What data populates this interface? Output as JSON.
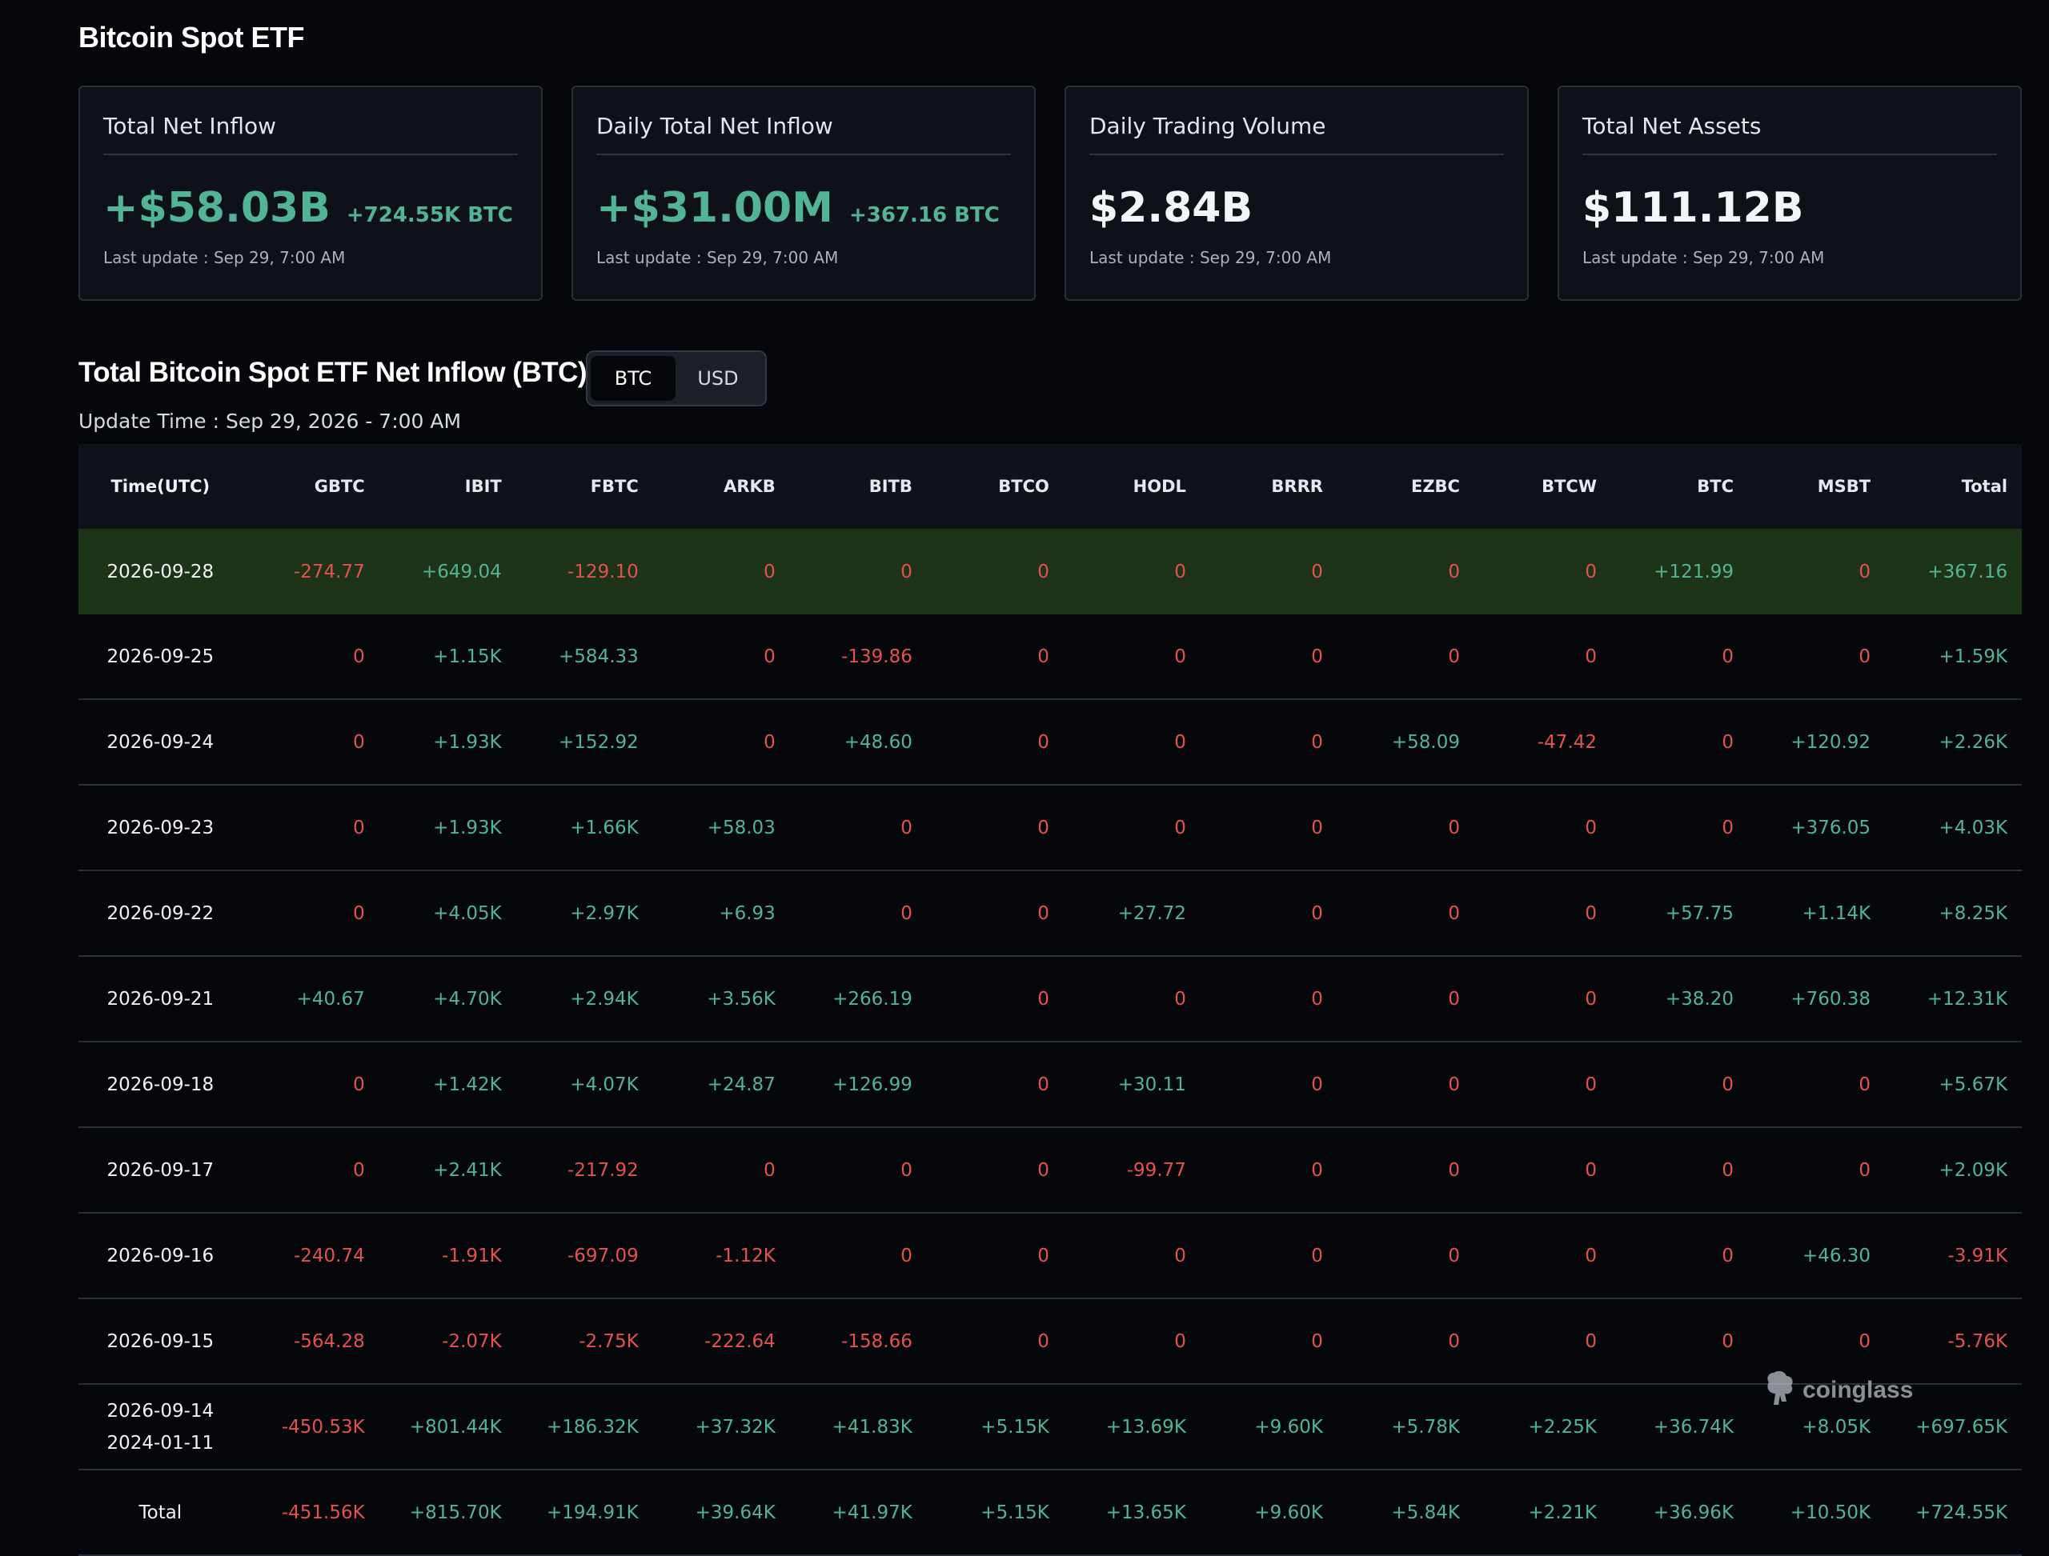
{
  "page": {
    "title": "Bitcoin Spot ETF"
  },
  "cards": [
    {
      "label": "Total Net Inflow",
      "value": "+$58.03B",
      "sub": "+724.55K BTC",
      "update": "Last update : Sep 29, 7:00 AM",
      "tone": "pos"
    },
    {
      "label": "Daily Total Net Inflow",
      "value": "+$31.00M",
      "sub": "+367.16 BTC",
      "update": "Last update : Sep 29, 7:00 AM",
      "tone": "pos"
    },
    {
      "label": "Daily Trading Volume",
      "value": "$2.84B",
      "sub": "",
      "update": "Last update : Sep 29, 7:00 AM",
      "tone": "neu"
    },
    {
      "label": "Total Net Assets",
      "value": "$111.12B",
      "sub": "",
      "update": "Last update : Sep 29, 7:00 AM",
      "tone": "neu"
    }
  ],
  "section": {
    "title": "Total Bitcoin Spot ETF Net Inflow (BTC)",
    "update_time": "Update Time : Sep 29, 2026 - 7:00 AM",
    "toggle": {
      "options": [
        "BTC",
        "USD"
      ],
      "selected": "BTC"
    }
  },
  "table": {
    "columns": [
      "Time(UTC)",
      "GBTC",
      "IBIT",
      "FBTC",
      "ARKB",
      "BITB",
      "BTCO",
      "HODL",
      "BRRR",
      "EZBC",
      "BTCW",
      "BTC",
      "MSBT",
      "Total"
    ],
    "rows": [
      {
        "time": [
          "2026-09-28"
        ],
        "highlight": true,
        "values": [
          "-274.77",
          "+649.04",
          "-129.10",
          "0",
          "0",
          "0",
          "0",
          "0",
          "0",
          "0",
          "+121.99",
          "0",
          "+367.16"
        ]
      },
      {
        "time": [
          "2026-09-25"
        ],
        "values": [
          "0",
          "+1.15K",
          "+584.33",
          "0",
          "-139.86",
          "0",
          "0",
          "0",
          "0",
          "0",
          "0",
          "0",
          "+1.59K"
        ]
      },
      {
        "time": [
          "2026-09-24"
        ],
        "values": [
          "0",
          "+1.93K",
          "+152.92",
          "0",
          "+48.60",
          "0",
          "0",
          "0",
          "+58.09",
          "-47.42",
          "0",
          "+120.92",
          "+2.26K"
        ]
      },
      {
        "time": [
          "2026-09-23"
        ],
        "values": [
          "0",
          "+1.93K",
          "+1.66K",
          "+58.03",
          "0",
          "0",
          "0",
          "0",
          "0",
          "0",
          "0",
          "+376.05",
          "+4.03K"
        ]
      },
      {
        "time": [
          "2026-09-22"
        ],
        "values": [
          "0",
          "+4.05K",
          "+2.97K",
          "+6.93",
          "0",
          "0",
          "+27.72",
          "0",
          "0",
          "0",
          "+57.75",
          "+1.14K",
          "+8.25K"
        ]
      },
      {
        "time": [
          "2026-09-21"
        ],
        "values": [
          "+40.67",
          "+4.70K",
          "+2.94K",
          "+3.56K",
          "+266.19",
          "0",
          "0",
          "0",
          "0",
          "0",
          "+38.20",
          "+760.38",
          "+12.31K"
        ]
      },
      {
        "time": [
          "2026-09-18"
        ],
        "values": [
          "0",
          "+1.42K",
          "+4.07K",
          "+24.87",
          "+126.99",
          "0",
          "+30.11",
          "0",
          "0",
          "0",
          "0",
          "0",
          "+5.67K"
        ]
      },
      {
        "time": [
          "2026-09-17"
        ],
        "values": [
          "0",
          "+2.41K",
          "-217.92",
          "0",
          "0",
          "0",
          "-99.77",
          "0",
          "0",
          "0",
          "0",
          "0",
          "+2.09K"
        ]
      },
      {
        "time": [
          "2026-09-16"
        ],
        "values": [
          "-240.74",
          "-1.91K",
          "-697.09",
          "-1.12K",
          "0",
          "0",
          "0",
          "0",
          "0",
          "0",
          "0",
          "+46.30",
          "-3.91K"
        ]
      },
      {
        "time": [
          "2026-09-15"
        ],
        "values": [
          "-564.28",
          "-2.07K",
          "-2.75K",
          "-222.64",
          "-158.66",
          "0",
          "0",
          "0",
          "0",
          "0",
          "0",
          "0",
          "-5.76K"
        ]
      },
      {
        "time": [
          "2026-09-14",
          "2024-01-11"
        ],
        "values": [
          "-450.53K",
          "+801.44K",
          "+186.32K",
          "+37.32K",
          "+41.83K",
          "+5.15K",
          "+13.69K",
          "+9.60K",
          "+5.78K",
          "+2.25K",
          "+36.74K",
          "+8.05K",
          "+697.65K"
        ]
      },
      {
        "time": [
          "Total"
        ],
        "values": [
          "-451.56K",
          "+815.70K",
          "+194.91K",
          "+39.64K",
          "+41.97K",
          "+5.15K",
          "+13.65K",
          "+9.60K",
          "+5.84K",
          "+2.21K",
          "+36.96K",
          "+10.50K",
          "+724.55K"
        ]
      }
    ]
  },
  "watermark": {
    "text": "coinglass",
    "icon": "coinglass-logo-icon"
  },
  "colors": {
    "positive": "#52b497",
    "negative": "#e4514f",
    "highlight_row": "#1e3419",
    "background": "#06070b"
  }
}
